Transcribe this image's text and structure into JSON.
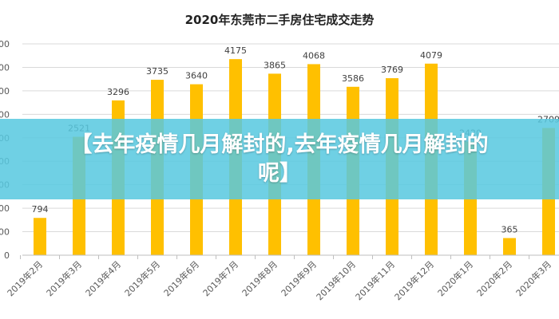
{
  "chart_data": {
    "type": "bar",
    "title": "2020年东莞市二手房住宅成交走势",
    "categories": [
      "2019年2月",
      "2019年3月",
      "2019年4月",
      "2019年5月",
      "2019年6月",
      "2019年7月",
      "2019年8月",
      "2019年9月",
      "2019年10月",
      "2019年11月",
      "2019年12月",
      "2020年1月",
      "2020年2月",
      "2020年3月"
    ],
    "values": [
      794,
      2521,
      3296,
      3735,
      3640,
      4175,
      3865,
      4068,
      3586,
      3769,
      4079,
      2420,
      365,
      2709
    ],
    "ylim": [
      0,
      4500
    ],
    "yticks": [
      0,
      500,
      1000,
      1500,
      2000,
      2500,
      3000,
      3500,
      4000,
      4500
    ],
    "grid": true,
    "xlabel": "",
    "ylabel": "",
    "bar_color": "#FFC000"
  },
  "overlay": {
    "text": "【去年疫情几月解封的,去年疫情几月解封的呢】",
    "color": "#57C8DF"
  }
}
